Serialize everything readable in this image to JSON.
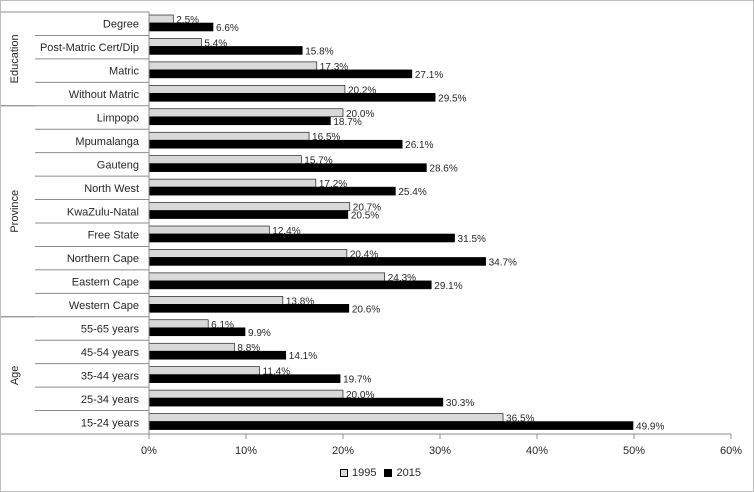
{
  "chart_data": {
    "type": "bar",
    "orientation": "horizontal",
    "groups": [
      {
        "name": "Education",
        "categories": [
          "Degree",
          "Post-Matric Cert/Dip",
          "Matric",
          "Without Matric"
        ]
      },
      {
        "name": "Province",
        "categories": [
          "Limpopo",
          "Mpumalanga",
          "Gauteng",
          "North West",
          "KwaZulu-Natal",
          "Free State",
          "Northern Cape",
          "Eastern Cape",
          "Western Cape"
        ]
      },
      {
        "name": "Age",
        "categories": [
          "55-65 years",
          "45-54 years",
          "35-44 years",
          "25-34 years",
          "15-24 years"
        ]
      }
    ],
    "categories": [
      "Degree",
      "Post-Matric Cert/Dip",
      "Matric",
      "Without Matric",
      "Limpopo",
      "Mpumalanga",
      "Gauteng",
      "North West",
      "KwaZulu-Natal",
      "Free State",
      "Northern Cape",
      "Eastern Cape",
      "Western Cape",
      "55-65 years",
      "45-54 years",
      "35-44 years",
      "25-34 years",
      "15-24 years"
    ],
    "series": [
      {
        "name": "1995",
        "color": "#d9d9d9",
        "values": [
          2.5,
          5.4,
          17.3,
          20.2,
          20.0,
          16.5,
          15.7,
          17.2,
          20.7,
          12.4,
          20.4,
          24.3,
          13.8,
          6.1,
          8.8,
          11.4,
          20.0,
          36.5
        ],
        "labels": [
          "2.5%",
          "5.4%",
          "17.3%",
          "20.2%",
          "20.0%",
          "16.5%",
          "15.7%",
          "17.2%",
          "20.7%",
          "12.4%",
          "20.4%",
          "24.3%",
          "13.8%",
          "6.1%",
          "8.8%",
          "11.4%",
          "20.0%",
          "36.5%"
        ]
      },
      {
        "name": "2015",
        "color": "#000000",
        "values": [
          6.6,
          15.8,
          27.1,
          29.5,
          18.7,
          26.1,
          28.6,
          25.4,
          20.5,
          31.5,
          34.7,
          29.1,
          20.6,
          9.9,
          14.1,
          19.7,
          30.3,
          49.9
        ],
        "labels": [
          "6.6%",
          "15.8%",
          "27.1%",
          "29.5%",
          "18.7%",
          "26.1%",
          "28.6%",
          "25.4%",
          "20.5%",
          "31.5%",
          "34.7%",
          "29.1%",
          "20.6%",
          "9.9%",
          "14.1%",
          "19.7%",
          "30.3%",
          "49.9%"
        ]
      }
    ],
    "xlim": [
      0,
      60
    ],
    "xticks": [
      "0%",
      "10%",
      "20%",
      "30%",
      "40%",
      "50%",
      "60%"
    ],
    "grid": false,
    "legend_position": "bottom"
  },
  "legend": {
    "items": [
      {
        "label": "1995",
        "color": "#d9d9d9"
      },
      {
        "label": "2015",
        "color": "#000000"
      }
    ]
  }
}
